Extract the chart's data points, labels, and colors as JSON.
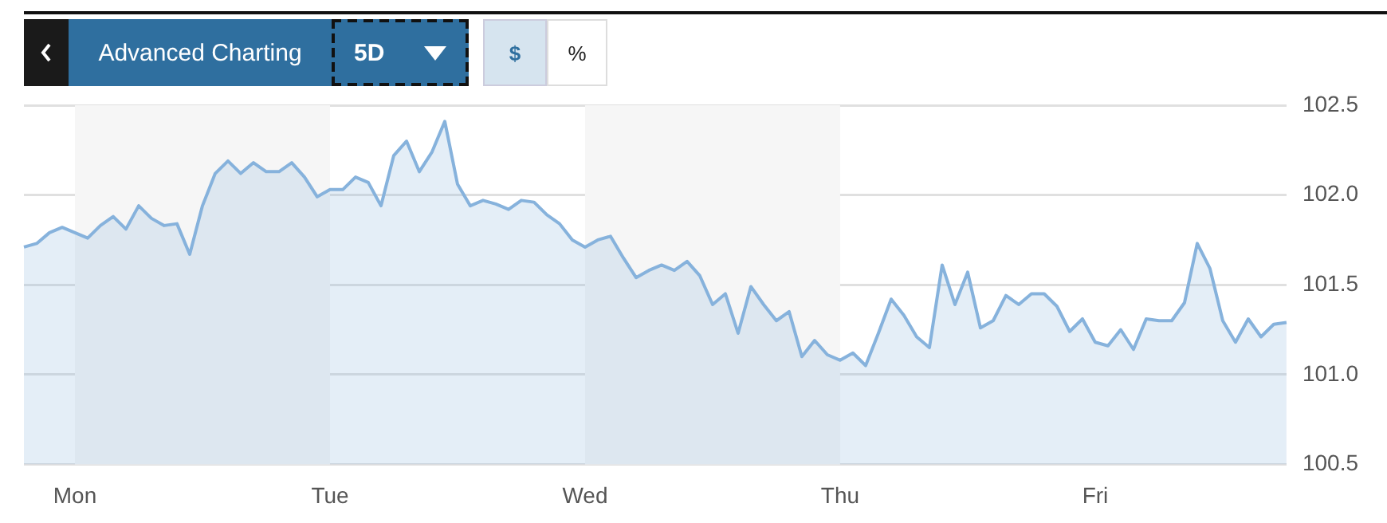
{
  "chart_data": {
    "type": "area",
    "annotations": [
      "Advanced Charting",
      "5D",
      "$",
      "%"
    ],
    "categories": [
      null,
      null,
      null,
      null,
      "Mon",
      null,
      null,
      null,
      null,
      null,
      null,
      null,
      null,
      null,
      null,
      null,
      null,
      null,
      null,
      null,
      null,
      null,
      null,
      null,
      "Tue",
      null,
      null,
      null,
      null,
      null,
      null,
      null,
      null,
      null,
      null,
      null,
      null,
      null,
      null,
      null,
      null,
      null,
      null,
      null,
      "Wed",
      null,
      null,
      null,
      null,
      null,
      null,
      null,
      null,
      null,
      null,
      null,
      null,
      null,
      null,
      null,
      null,
      null,
      null,
      null,
      "Thu",
      null,
      null,
      null,
      null,
      null,
      null,
      null,
      null,
      null,
      null,
      null,
      null,
      null,
      null,
      null,
      null,
      null,
      null,
      null,
      "Fri",
      null,
      null,
      null,
      null,
      null,
      null,
      null,
      null,
      null,
      null,
      null,
      null,
      null,
      null,
      null
    ],
    "ylim": [
      100.5,
      102.5
    ],
    "yticks": [
      {
        "value": 100.5,
        "label": "100.5"
      },
      {
        "value": 101,
        "label": "101.0"
      },
      {
        "value": 101.5,
        "label": "101.5"
      },
      {
        "value": 102,
        "label": "102.0"
      },
      {
        "value": 102.5,
        "label": "102.5"
      }
    ],
    "grid": "y",
    "legend": false,
    "marker": "none",
    "line_style": "solid",
    "bands": [
      {
        "axis": "x",
        "from": "Mon",
        "to": "Tue",
        "color": "#f6f6f6"
      },
      {
        "axis": "x",
        "from": "Wed",
        "to": "Thu",
        "color": "#f6f6f6"
      }
    ],
    "series": [
      {
        "color": "#86b2dc",
        "values": [
          101.71,
          101.73,
          101.79,
          101.82,
          101.79,
          101.76,
          101.83,
          101.88,
          101.81,
          101.94,
          101.87,
          101.83,
          101.84,
          101.67,
          101.94,
          102.12,
          102.19,
          102.12,
          102.18,
          102.13,
          102.13,
          102.18,
          102.1,
          101.99,
          102.03,
          102.03,
          102.1,
          102.07,
          101.94,
          102.22,
          102.3,
          102.13,
          102.24,
          102.41,
          102.06,
          101.94,
          101.97,
          101.95,
          101.92,
          101.97,
          101.96,
          101.89,
          101.84,
          101.75,
          101.71,
          101.75,
          101.77,
          101.65,
          101.54,
          101.58,
          101.61,
          101.58,
          101.63,
          101.55,
          101.39,
          101.45,
          101.23,
          101.49,
          101.39,
          101.3,
          101.35,
          101.1,
          101.19,
          101.11,
          101.08,
          101.12,
          101.05,
          101.23,
          101.42,
          101.33,
          101.21,
          101.15,
          101.61,
          101.39,
          101.57,
          101.26,
          101.3,
          101.44,
          101.39,
          101.45,
          101.45,
          101.38,
          101.24,
          101.31,
          101.18,
          101.16,
          101.25,
          101.14,
          101.31,
          101.3,
          101.3,
          101.4,
          101.73,
          101.59,
          101.3,
          101.18,
          101.31,
          101.21,
          101.28,
          101.29
        ]
      }
    ]
  }
}
